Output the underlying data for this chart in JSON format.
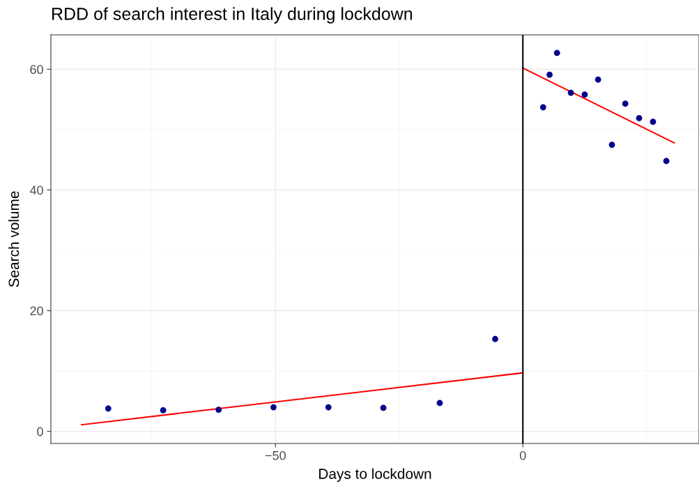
{
  "chart_data": {
    "type": "scatter",
    "title": "RDD of search interest in Italy during lockdown",
    "xlabel": "Days to lockdown",
    "ylabel": "Search volume",
    "series": [
      {
        "marker": "circle",
        "color": "#00008b",
        "x": [
          -83.8,
          -72.7,
          -61.5,
          -50.4,
          -39.3,
          -28.2,
          -16.8,
          -5.6,
          5.4,
          4.1,
          6.9,
          9.7,
          12.5,
          15.2,
          18.0,
          20.7,
          23.5,
          26.3,
          29.0
        ],
        "values": [
          3.8,
          3.5,
          3.6,
          4.0,
          4.0,
          3.9,
          4.7,
          15.3,
          59.1,
          53.7,
          62.7,
          56.1,
          55.8,
          58.3,
          47.5,
          54.3,
          51.9,
          51.3,
          44.8
        ]
      },
      {
        "type": "line",
        "color": "#ff0000",
        "x": [
          -89.2,
          0
        ],
        "values": [
          1.1,
          9.7
        ]
      },
      {
        "type": "line",
        "color": "#ff0000",
        "x": [
          0,
          30.6
        ],
        "values": [
          60.2,
          47.8
        ]
      }
    ],
    "ref_lines": [
      {
        "axis": "x",
        "value": 0,
        "color": "#000000"
      }
    ],
    "xlim": [
      -95.4,
      35.6
    ],
    "xticks": [
      {
        "value": -50,
        "label": "−50"
      },
      0
    ],
    "ylim": [
      -2,
      65.7
    ],
    "yticks": [
      0,
      20,
      40,
      60
    ],
    "grid": true
  }
}
